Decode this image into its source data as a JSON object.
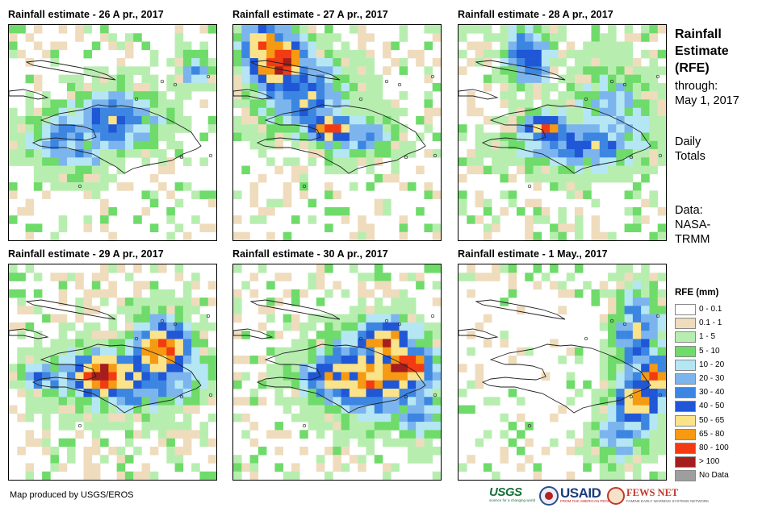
{
  "panels": [
    {
      "title": "Rainfall estimate - 26 A pr., 2017"
    },
    {
      "title": "Rainfall estimate - 27 A pr., 2017"
    },
    {
      "title": "Rainfall estimate - 28 A pr., 2017"
    },
    {
      "title": "Rainfall estimate - 29 A pr., 2017"
    },
    {
      "title": "Rainfall estimate - 30 A pr., 2017"
    },
    {
      "title": "Rainfall estimate - 1 May., 2017"
    }
  ],
  "side": {
    "title_lines": [
      "Rainfall",
      "Estimate",
      "(RFE)"
    ],
    "through_label": "through:",
    "through_date": "May 1, 2017",
    "daily_lines": [
      "Daily",
      "Totals"
    ],
    "data_lines": [
      "Data:",
      "NASA-",
      "TRMM"
    ]
  },
  "legend": {
    "title": "RFE (mm)",
    "items": [
      {
        "label": "0 - 0.1",
        "color": "#ffffff"
      },
      {
        "label": "0.1 - 1",
        "color": "#efdcbd"
      },
      {
        "label": "1 - 5",
        "color": "#b7eeb0"
      },
      {
        "label": "5 - 10",
        "color": "#6fdb6a"
      },
      {
        "label": "10 - 20",
        "color": "#b5e6f4"
      },
      {
        "label": "20 - 30",
        "color": "#7cb5ee"
      },
      {
        "label": "30 - 40",
        "color": "#3c86e2"
      },
      {
        "label": "40 - 50",
        "color": "#1f57d6"
      },
      {
        "label": "50 - 65",
        "color": "#fbe38a"
      },
      {
        "label": "65 - 80",
        "color": "#f59a12"
      },
      {
        "label": "80 - 100",
        "color": "#f23b12"
      },
      {
        "label": "> 100",
        "color": "#a51d1d"
      },
      {
        "label": "No Data",
        "color": "#9e9e9e"
      }
    ]
  },
  "footer": {
    "credit": "Map produced by USGS/EROS",
    "logos": {
      "usgs": "USGS",
      "usgs_tag": "science for a changing world",
      "usaid": "USAID",
      "usaid_tag": "FROM THE AMERICAN PEOPLE",
      "fews": "FEWS NET",
      "fews_tag": "FAMINE EARLY WARNING SYSTEMS NETWORK"
    }
  }
}
